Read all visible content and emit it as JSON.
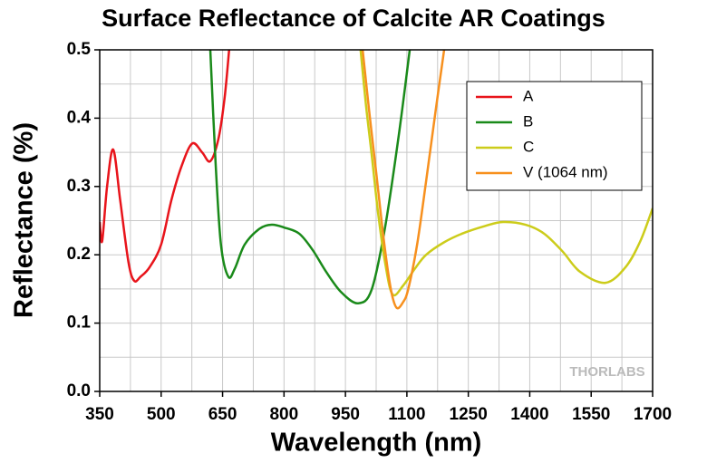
{
  "chart_data": {
    "type": "line",
    "title": "Surface Reflectance of Calcite AR Coatings",
    "x_label": "Wavelength (nm)",
    "y_label": "Reflectance (%)",
    "watermark": "THORLABS",
    "xlim": [
      350,
      1700
    ],
    "xticks": [
      350,
      500,
      650,
      800,
      950,
      1100,
      1250,
      1400,
      1550,
      1700
    ],
    "ylim": [
      0,
      0.5
    ],
    "yticks": [
      {
        "value": 0,
        "label": "0.0"
      },
      0.1,
      0.2,
      0.3,
      0.4,
      0.5
    ],
    "grid": true,
    "minor_grid": true,
    "legend": "upper right",
    "series": [
      {
        "name": "A",
        "color": "#e8141b",
        "x": [
          350,
          356,
          368,
          383,
          400,
          420,
          434,
          450,
          472,
          500,
          525,
          550,
          576,
          600,
          620,
          640,
          655,
          666
        ],
        "values": [
          0.248,
          0.22,
          0.3,
          0.354,
          0.28,
          0.19,
          0.162,
          0.168,
          0.182,
          0.215,
          0.28,
          0.33,
          0.363,
          0.35,
          0.337,
          0.37,
          0.43,
          0.5
        ]
      },
      {
        "name": "B",
        "color": "#1a8a1a",
        "x": [
          620,
          633,
          646,
          664,
          680,
          704,
          740,
          770,
          800,
          837,
          870,
          903,
          940,
          981,
          1014,
          1047,
          1080,
          1107
        ],
        "values": [
          0.5,
          0.334,
          0.215,
          0.168,
          0.18,
          0.215,
          0.238,
          0.244,
          0.24,
          0.231,
          0.207,
          0.175,
          0.145,
          0.129,
          0.149,
          0.241,
          0.374,
          0.5
        ]
      },
      {
        "name": "C",
        "color": "#cccc1a",
        "x": [
          987,
          1000,
          1014,
          1030,
          1047,
          1065,
          1091,
          1120,
          1147,
          1190,
          1235,
          1290,
          1335,
          1390,
          1435,
          1480,
          1523,
          1585,
          1634,
          1670,
          1700
        ],
        "values": [
          0.5,
          0.42,
          0.347,
          0.26,
          0.188,
          0.142,
          0.155,
          0.18,
          0.2,
          0.218,
          0.231,
          0.242,
          0.248,
          0.244,
          0.231,
          0.205,
          0.175,
          0.159,
          0.182,
          0.22,
          0.268
        ]
      },
      {
        "name": "V (1064 nm)",
        "color": "#f7901e",
        "x": [
          992,
          1008,
          1025,
          1040,
          1054,
          1065,
          1076,
          1090,
          1103,
          1125,
          1147,
          1170,
          1191
        ],
        "values": [
          0.5,
          0.41,
          0.321,
          0.24,
          0.175,
          0.138,
          0.122,
          0.13,
          0.149,
          0.215,
          0.308,
          0.41,
          0.5
        ]
      }
    ]
  }
}
